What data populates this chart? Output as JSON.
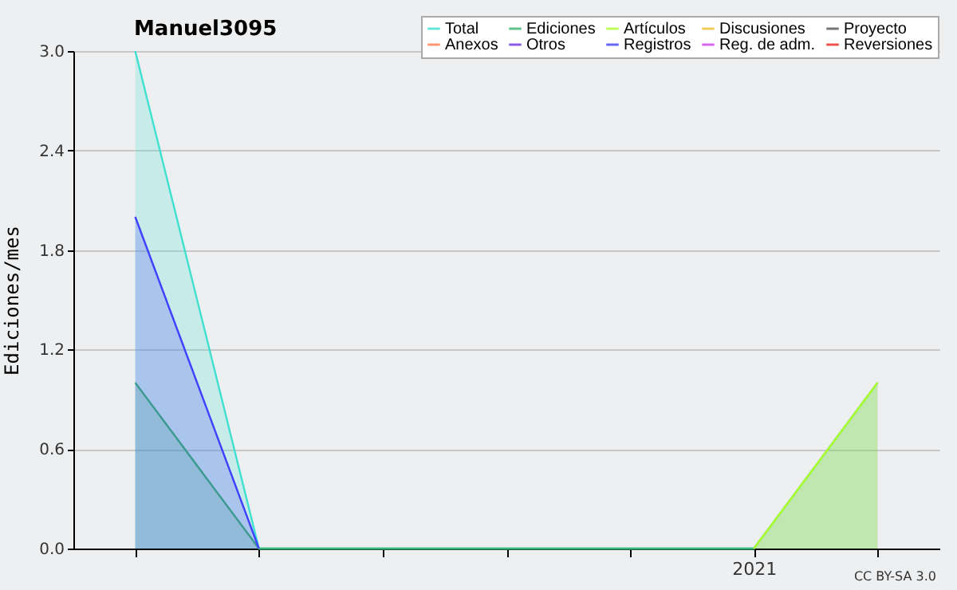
{
  "chart_data": {
    "type": "area",
    "title": "Manuel3095",
    "ylabel": "Ediciones/mes",
    "annotations": [
      "CC BY-SA 3.0"
    ],
    "categories": [
      null,
      null,
      null,
      null,
      null,
      "2021",
      null
    ],
    "series": [
      {
        "name": "Total",
        "color": "#40e0d0",
        "values": [
          3,
          0,
          0,
          0,
          0,
          0,
          null
        ]
      },
      {
        "name": "Ediciones",
        "color": "#3cb371",
        "values": [
          1,
          0,
          0,
          0,
          0,
          0,
          1
        ]
      },
      {
        "name": "Artículos",
        "color": "#adff2f",
        "values": [
          null,
          null,
          null,
          null,
          null,
          0,
          1
        ]
      },
      {
        "name": "Discusiones",
        "color": "#f0c030",
        "values": [
          null,
          null,
          null,
          null,
          null,
          null,
          null
        ]
      },
      {
        "name": "Proyecto",
        "color": "#555555",
        "values": [
          null,
          null,
          null,
          null,
          null,
          null,
          null
        ]
      },
      {
        "name": "Anexos",
        "color": "#ff7f50",
        "values": [
          null,
          null,
          null,
          null,
          null,
          null,
          null
        ]
      },
      {
        "name": "Otros",
        "color": "#7030e0",
        "values": [
          null,
          null,
          null,
          null,
          null,
          null,
          null
        ]
      },
      {
        "name": "Registros",
        "color": "#4040ff",
        "values": [
          2,
          0,
          null,
          null,
          null,
          null,
          null
        ]
      },
      {
        "name": "Reg. de adm.",
        "color": "#cc44ee",
        "values": [
          null,
          null,
          null,
          null,
          null,
          null,
          null
        ]
      },
      {
        "name": "Reversiones",
        "color": "#ee2222",
        "values": [
          null,
          null,
          null,
          null,
          null,
          null,
          null
        ]
      }
    ],
    "ylim": [
      0,
      3
    ],
    "yticks": [
      {
        "value": 0,
        "label": "0.0"
      },
      {
        "value": 0.6,
        "label": "0.6"
      },
      {
        "value": 1.2,
        "label": "1.2"
      },
      {
        "value": 1.8,
        "label": "1.8"
      },
      {
        "value": 2.4,
        "label": "2.4"
      },
      {
        "value": 3,
        "label": "3.0"
      }
    ],
    "grid": "y",
    "legend": "top right"
  }
}
